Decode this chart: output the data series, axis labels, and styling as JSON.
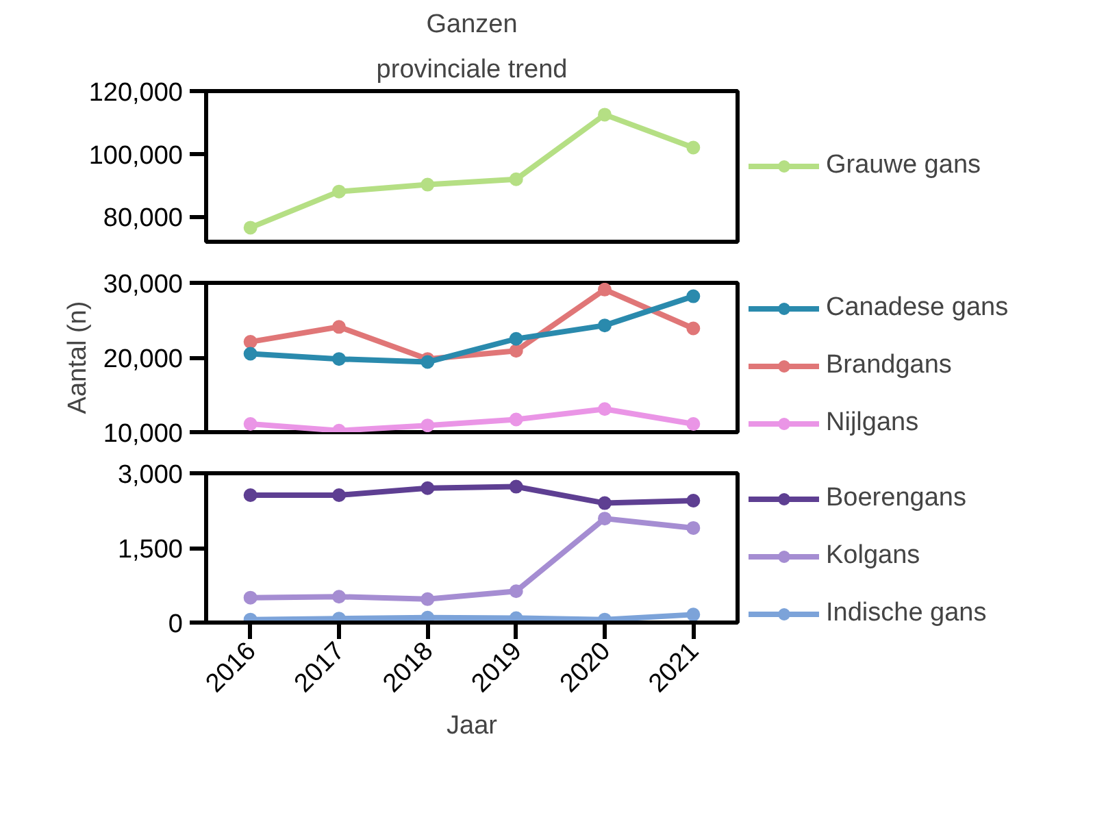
{
  "chart_data": [
    {
      "type": "line",
      "title": "Ganzen",
      "subtitle": "provinciale trend",
      "categories": [
        "2016",
        "2017",
        "2018",
        "2019",
        "2020",
        "2021"
      ],
      "ylim": [
        72000,
        120000
      ],
      "yticks": [
        {
          "value": 80000,
          "label": "80,000"
        },
        {
          "value": 100000,
          "label": "100,000"
        },
        {
          "value": 120000,
          "label": "120,000"
        }
      ],
      "tick_labels": "y",
      "marker": "circle",
      "grid": false,
      "legend": "right",
      "series": [
        {
          "name": "Grauwe gans",
          "color": "#b5df84",
          "values": [
            76500,
            88000,
            90200,
            91900,
            112500,
            102000
          ]
        }
      ]
    },
    {
      "type": "line",
      "ylabel": "Aantal (n)",
      "categories": [
        "2016",
        "2017",
        "2018",
        "2019",
        "2020",
        "2021"
      ],
      "ylim": [
        10000,
        30000
      ],
      "yticks": [
        {
          "value": 10000,
          "label": "10,000"
        },
        {
          "value": 20000,
          "label": "20,000"
        },
        {
          "value": 30000,
          "label": "30,000"
        }
      ],
      "tick_labels": "y",
      "marker": "circle",
      "grid": false,
      "legend": "right",
      "series": [
        {
          "name": "Canadese gans",
          "color": "#2a8aad",
          "values": [
            20500,
            19800,
            19400,
            22500,
            24300,
            28200
          ]
        },
        {
          "name": "Brandgans",
          "color": "#e07677",
          "values": [
            22100,
            24100,
            19800,
            20900,
            29100,
            23900
          ]
        },
        {
          "name": "Nijlgans",
          "color": "#ea95e6",
          "values": [
            11100,
            10200,
            10900,
            11700,
            13100,
            11100
          ]
        }
      ]
    },
    {
      "type": "line",
      "xlabel": "Jaar",
      "categories": [
        "2016",
        "2017",
        "2018",
        "2019",
        "2020",
        "2021"
      ],
      "ylim": [
        0,
        3000
      ],
      "yticks": [
        0,
        {
          "value": 1500,
          "label": "1,500"
        },
        {
          "value": 3000,
          "label": "3,000"
        }
      ],
      "marker": "circle",
      "grid": false,
      "legend": "right",
      "series": [
        {
          "name": "Boerengans",
          "color": "#5e3f92",
          "values": [
            2560,
            2560,
            2700,
            2730,
            2400,
            2450
          ]
        },
        {
          "name": "Kolgans",
          "color": "#a58dd2",
          "values": [
            500,
            520,
            470,
            630,
            2090,
            1900
          ]
        },
        {
          "name": "Indische gans",
          "color": "#7ca3d9",
          "values": [
            60,
            80,
            100,
            90,
            60,
            160
          ]
        }
      ]
    }
  ]
}
